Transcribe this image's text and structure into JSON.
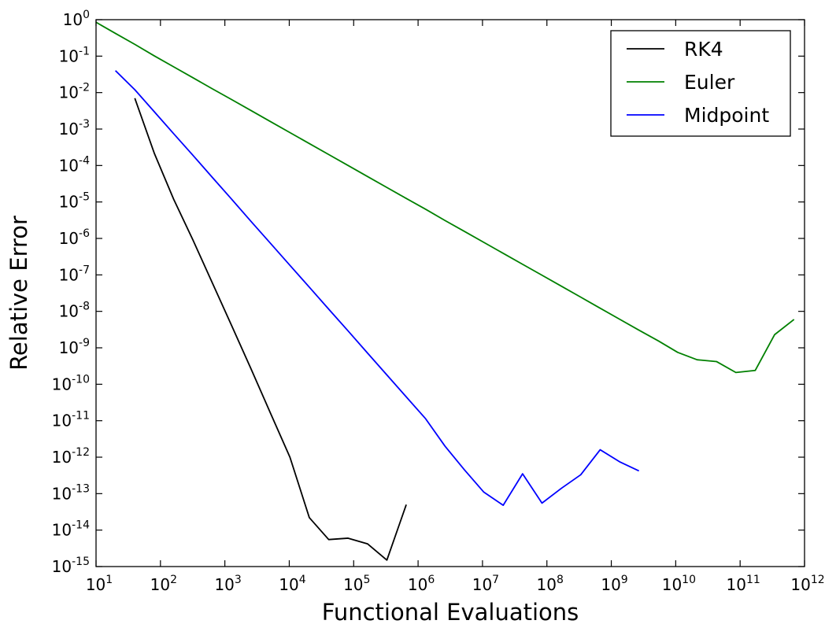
{
  "chart_data": {
    "type": "line",
    "title": "",
    "xlabel": "Functional Evaluations",
    "ylabel": "Relative Error",
    "xscale": "log",
    "yscale": "log",
    "xlim": [
      10,
      1000000000000
    ],
    "ylim": [
      1e-15,
      1
    ],
    "grid": false,
    "legend_position": "top-right",
    "x_ticks": [
      {
        "base": "10",
        "exp": "1",
        "value": 10.0
      },
      {
        "base": "10",
        "exp": "2",
        "value": 100.0
      },
      {
        "base": "10",
        "exp": "3",
        "value": 1000.0
      },
      {
        "base": "10",
        "exp": "4",
        "value": 10000.0
      },
      {
        "base": "10",
        "exp": "5",
        "value": 100000.0
      },
      {
        "base": "10",
        "exp": "6",
        "value": 1000000.0
      },
      {
        "base": "10",
        "exp": "7",
        "value": 10000000.0
      },
      {
        "base": "10",
        "exp": "8",
        "value": 100000000.0
      },
      {
        "base": "10",
        "exp": "9",
        "value": 1000000000.0
      },
      {
        "base": "10",
        "exp": "10",
        "value": 10000000000.0
      },
      {
        "base": "10",
        "exp": "11",
        "value": 100000000000.0
      },
      {
        "base": "10",
        "exp": "12",
        "value": 1000000000000.0
      }
    ],
    "y_ticks": [
      {
        "base": "10",
        "exp": "0",
        "value": 1
      },
      {
        "base": "10",
        "exp": "-1",
        "value": 0.1
      },
      {
        "base": "10",
        "exp": "-2",
        "value": 0.01
      },
      {
        "base": "10",
        "exp": "-3",
        "value": 0.001
      },
      {
        "base": "10",
        "exp": "-4",
        "value": 0.0001
      },
      {
        "base": "10",
        "exp": "-5",
        "value": 1e-05
      },
      {
        "base": "10",
        "exp": "-6",
        "value": 1e-06
      },
      {
        "base": "10",
        "exp": "-7",
        "value": 1e-07
      },
      {
        "base": "10",
        "exp": "-8",
        "value": 1e-08
      },
      {
        "base": "10",
        "exp": "-9",
        "value": 1e-09
      },
      {
        "base": "10",
        "exp": "-10",
        "value": 1e-10
      },
      {
        "base": "10",
        "exp": "-11",
        "value": 1e-11
      },
      {
        "base": "10",
        "exp": "-12",
        "value": 1e-12
      },
      {
        "base": "10",
        "exp": "-13",
        "value": 1e-13
      },
      {
        "base": "10",
        "exp": "-14",
        "value": 1e-14
      },
      {
        "base": "10",
        "exp": "-15",
        "value": 1e-15
      }
    ],
    "series": [
      {
        "name": "RK4",
        "color": "#000000",
        "x": [
          40,
          80,
          160,
          320,
          640,
          1280,
          2560,
          5120,
          10240,
          20480,
          40960,
          81920,
          163840,
          327680,
          655360
        ],
        "y": [
          0.007,
          0.00022,
          1.2e-05,
          9e-07,
          6e-08,
          4e-09,
          2.6e-10,
          1.6e-11,
          1e-12,
          2.2e-14,
          5.5e-15,
          6e-15,
          4.2e-15,
          1.5e-15,
          5e-14
        ]
      },
      {
        "name": "Euler",
        "color": "#008000",
        "x": [
          10,
          20,
          40,
          80,
          160,
          320,
          640,
          1280,
          2560,
          5120,
          10240,
          20480,
          40960,
          81920,
          163840,
          327680,
          655360,
          1310720,
          2621440,
          5242880,
          10485760,
          20971520,
          41943040,
          83886080,
          167772160,
          335544320,
          671088640,
          1342177280,
          2684354560,
          5368709120,
          10737418240,
          21474836480,
          42949672960,
          85899345920,
          171798691840,
          343597383680,
          687194767360
        ],
        "y": [
          0.85,
          0.42,
          0.21,
          0.102,
          0.051,
          0.0255,
          0.0127,
          0.0064,
          0.0032,
          0.0016,
          0.0008,
          0.0004,
          0.0002,
          0.0001,
          5e-05,
          2.5e-05,
          1.25e-05,
          6.3e-06,
          3.1e-06,
          1.56e-06,
          7.8e-07,
          3.9e-07,
          1.95e-07,
          9.8e-08,
          4.9e-08,
          2.45e-08,
          1.22e-08,
          6.1e-09,
          3.05e-09,
          1.55e-09,
          7.5e-10,
          4.7e-10,
          4.2e-10,
          2.1e-10,
          2.4e-10,
          2.3e-09,
          6e-09
        ]
      },
      {
        "name": "Midpoint",
        "color": "#0000ff",
        "x": [
          20,
          40,
          80,
          160,
          320,
          640,
          1280,
          2560,
          5120,
          10240,
          20480,
          40960,
          81920,
          163840,
          327680,
          655360,
          1310720,
          2621440,
          5242880,
          10485760,
          20971520,
          41943040,
          83886080,
          167772160,
          335544320,
          671088640,
          1342177280,
          2684354560
        ],
        "y": [
          0.04,
          0.012,
          0.003,
          0.00075,
          0.00019,
          4.7e-05,
          1.18e-05,
          2.9e-06,
          7.3e-07,
          1.83e-07,
          4.6e-08,
          1.15e-08,
          2.9e-09,
          7.2e-10,
          1.8e-10,
          4.5e-11,
          1.13e-11,
          2e-12,
          4.5e-13,
          1.1e-13,
          4.8e-14,
          3.5e-13,
          5.5e-14,
          1.4e-13,
          3.3e-13,
          1.6e-12,
          7.5e-13,
          4.2e-13
        ]
      }
    ]
  }
}
